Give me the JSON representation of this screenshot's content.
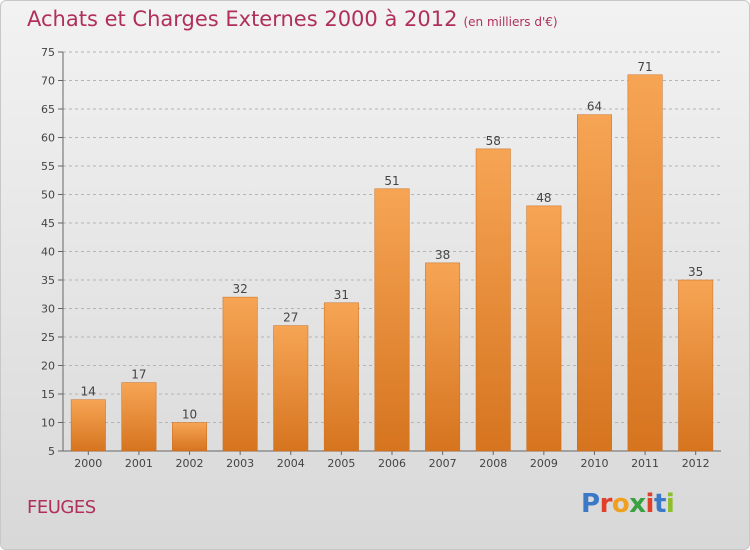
{
  "chart_title": "Achats et Charges Externes 2000 à 2012",
  "chart_subtitle": "(en milliers d'€)",
  "place_label": "FEUGES",
  "logo_text": "Proxiti",
  "logo_colors": [
    "#3a78c8",
    "#e0402a",
    "#f0a020",
    "#3aa040",
    "#e0402a",
    "#3a78c8",
    "#8cbf2a"
  ],
  "colors": {
    "bar_top": "#f6a555",
    "bar_bottom": "#d6741f",
    "title": "#b0305a"
  },
  "chart_data": {
    "type": "bar",
    "title": "Achats et Charges Externes 2000 à 2012",
    "subtitle": "(en milliers d'€)",
    "xlabel": "",
    "ylabel": "",
    "categories": [
      "2000",
      "2001",
      "2002",
      "2003",
      "2004",
      "2005",
      "2006",
      "2007",
      "2008",
      "2009",
      "2010",
      "2011",
      "2012"
    ],
    "values": [
      14,
      17,
      10,
      32,
      27,
      31,
      51,
      38,
      58,
      48,
      64,
      71,
      35
    ],
    "ylim": [
      5,
      75
    ],
    "yticks": [
      5,
      10,
      15,
      20,
      25,
      30,
      35,
      40,
      45,
      50,
      55,
      60,
      65,
      70,
      75
    ],
    "grid": "horizontal-dashed",
    "legend": "none"
  }
}
